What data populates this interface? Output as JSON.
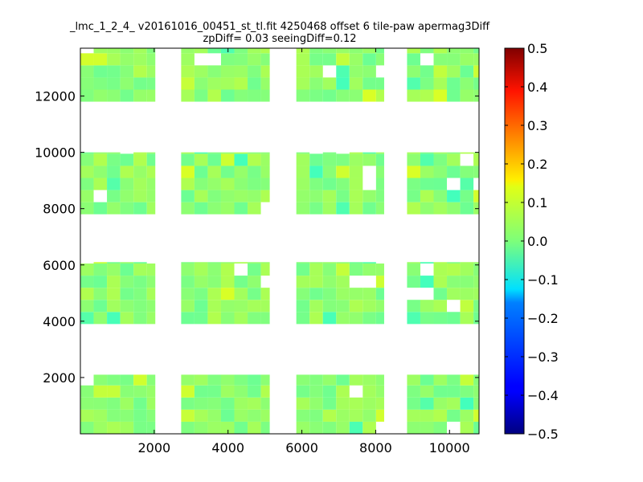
{
  "chart_data": {
    "type": "heatmap",
    "title": "_lmc_1_2_4_ v20161016_00451_st_tl.fit 4250468 offset 6 tile-paw apermag3Diff",
    "subtitle": "zpDiff= 0.03 seeingDiff=0.12",
    "colormap": "jet",
    "xlim": [
      0,
      10800
    ],
    "ylim": [
      0,
      13700
    ],
    "x_ticks": [
      2000,
      4000,
      6000,
      8000,
      10000
    ],
    "x_tick_labels": [
      "2000",
      "4000",
      "6000",
      "8000",
      "10000"
    ],
    "y_ticks": [
      2000,
      4000,
      6000,
      8000,
      10000,
      12000
    ],
    "y_tick_labels": [
      "2000",
      "4000",
      "6000",
      "8000",
      "10000",
      "12000"
    ],
    "colorbar": {
      "range": [
        -0.5,
        0.5
      ],
      "ticks": [
        0.5,
        0.4,
        0.3,
        0.2,
        0.1,
        0.0,
        -0.1,
        -0.2,
        -0.3,
        -0.4,
        -0.5
      ],
      "tick_labels": [
        "0.5",
        "0.4",
        "0.3",
        "0.2",
        "0.1",
        "0.0",
        "−0.1",
        "−0.2",
        "−0.3",
        "−0.4",
        "−0.5"
      ]
    },
    "cell_size": [
      360,
      430
    ],
    "grid_x_start": 0,
    "grid_y_start": 0,
    "rows": [
      "",
      "",
      "",
      "",
      "",
      "",
      "",
      "",
      "",
      "",
      "",
      "",
      "",
      "",
      "",
      "",
      "",
      "",
      "",
      "",
      "",
      "",
      "",
      "",
      "",
      "",
      "",
      "",
      "",
      "",
      "",
      "",
      "",
      "",
      "",
      "",
      "",
      "",
      ""
    ],
    "blocks": [
      {
        "x0": 0,
        "x1": 2030,
        "y0": 0,
        "y1": 2100
      },
      {
        "x0": 2730,
        "x1": 5130,
        "y0": 0,
        "y1": 2100
      },
      {
        "x0": 5850,
        "x1": 8230,
        "y0": 0,
        "y1": 2100
      },
      {
        "x0": 8850,
        "x1": 10800,
        "y0": 0,
        "y1": 2100
      },
      {
        "x0": 0,
        "x1": 2030,
        "y0": 3900,
        "y1": 6100
      },
      {
        "x0": 2730,
        "x1": 5130,
        "y0": 3900,
        "y1": 6100
      },
      {
        "x0": 5850,
        "x1": 8230,
        "y0": 3900,
        "y1": 6100
      },
      {
        "x0": 8850,
        "x1": 10800,
        "y0": 3900,
        "y1": 6100
      },
      {
        "x0": 0,
        "x1": 2030,
        "y0": 7800,
        "y1": 10000
      },
      {
        "x0": 2730,
        "x1": 5130,
        "y0": 7800,
        "y1": 10000
      },
      {
        "x0": 5850,
        "x1": 8230,
        "y0": 7800,
        "y1": 10000
      },
      {
        "x0": 8850,
        "x1": 10800,
        "y0": 7800,
        "y1": 10000
      },
      {
        "x0": 0,
        "x1": 2030,
        "y0": 11800,
        "y1": 13700
      },
      {
        "x0": 2730,
        "x1": 5130,
        "y0": 11800,
        "y1": 13700
      },
      {
        "x0": 5850,
        "x1": 8230,
        "y0": 11800,
        "y1": 13700
      },
      {
        "x0": 8850,
        "x1": 10800,
        "y0": 11800,
        "y1": 13700
      }
    ]
  }
}
